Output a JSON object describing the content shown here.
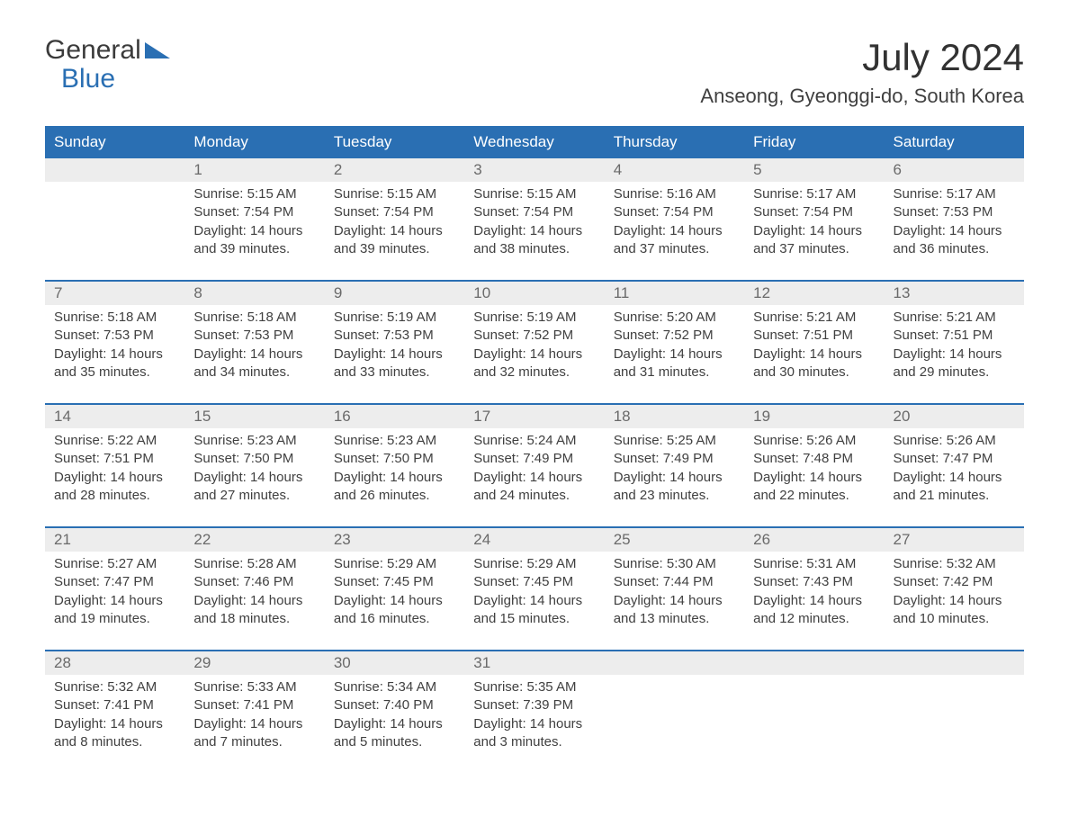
{
  "logo": {
    "line1": "General",
    "line2": "Blue"
  },
  "title": {
    "month": "July 2024",
    "location": "Anseong, Gyeonggi-do, South Korea"
  },
  "colors": {
    "header_bg": "#2a6fb3",
    "header_text": "#ffffff",
    "daynum_bg": "#ededed",
    "daynum_text": "#6a6a6a",
    "body_text": "#404040",
    "background": "#ffffff",
    "week_border": "#2a6fb3"
  },
  "typography": {
    "month_fontsize": 42,
    "location_fontsize": 22,
    "dayheader_fontsize": 17,
    "daynum_fontsize": 17,
    "content_fontsize": 15
  },
  "day_headers": [
    "Sunday",
    "Monday",
    "Tuesday",
    "Wednesday",
    "Thursday",
    "Friday",
    "Saturday"
  ],
  "weeks": [
    [
      {
        "num": "",
        "sunrise": "",
        "sunset": "",
        "daylight1": "",
        "daylight2": ""
      },
      {
        "num": "1",
        "sunrise": "Sunrise: 5:15 AM",
        "sunset": "Sunset: 7:54 PM",
        "daylight1": "Daylight: 14 hours",
        "daylight2": "and 39 minutes."
      },
      {
        "num": "2",
        "sunrise": "Sunrise: 5:15 AM",
        "sunset": "Sunset: 7:54 PM",
        "daylight1": "Daylight: 14 hours",
        "daylight2": "and 39 minutes."
      },
      {
        "num": "3",
        "sunrise": "Sunrise: 5:15 AM",
        "sunset": "Sunset: 7:54 PM",
        "daylight1": "Daylight: 14 hours",
        "daylight2": "and 38 minutes."
      },
      {
        "num": "4",
        "sunrise": "Sunrise: 5:16 AM",
        "sunset": "Sunset: 7:54 PM",
        "daylight1": "Daylight: 14 hours",
        "daylight2": "and 37 minutes."
      },
      {
        "num": "5",
        "sunrise": "Sunrise: 5:17 AM",
        "sunset": "Sunset: 7:54 PM",
        "daylight1": "Daylight: 14 hours",
        "daylight2": "and 37 minutes."
      },
      {
        "num": "6",
        "sunrise": "Sunrise: 5:17 AM",
        "sunset": "Sunset: 7:53 PM",
        "daylight1": "Daylight: 14 hours",
        "daylight2": "and 36 minutes."
      }
    ],
    [
      {
        "num": "7",
        "sunrise": "Sunrise: 5:18 AM",
        "sunset": "Sunset: 7:53 PM",
        "daylight1": "Daylight: 14 hours",
        "daylight2": "and 35 minutes."
      },
      {
        "num": "8",
        "sunrise": "Sunrise: 5:18 AM",
        "sunset": "Sunset: 7:53 PM",
        "daylight1": "Daylight: 14 hours",
        "daylight2": "and 34 minutes."
      },
      {
        "num": "9",
        "sunrise": "Sunrise: 5:19 AM",
        "sunset": "Sunset: 7:53 PM",
        "daylight1": "Daylight: 14 hours",
        "daylight2": "and 33 minutes."
      },
      {
        "num": "10",
        "sunrise": "Sunrise: 5:19 AM",
        "sunset": "Sunset: 7:52 PM",
        "daylight1": "Daylight: 14 hours",
        "daylight2": "and 32 minutes."
      },
      {
        "num": "11",
        "sunrise": "Sunrise: 5:20 AM",
        "sunset": "Sunset: 7:52 PM",
        "daylight1": "Daylight: 14 hours",
        "daylight2": "and 31 minutes."
      },
      {
        "num": "12",
        "sunrise": "Sunrise: 5:21 AM",
        "sunset": "Sunset: 7:51 PM",
        "daylight1": "Daylight: 14 hours",
        "daylight2": "and 30 minutes."
      },
      {
        "num": "13",
        "sunrise": "Sunrise: 5:21 AM",
        "sunset": "Sunset: 7:51 PM",
        "daylight1": "Daylight: 14 hours",
        "daylight2": "and 29 minutes."
      }
    ],
    [
      {
        "num": "14",
        "sunrise": "Sunrise: 5:22 AM",
        "sunset": "Sunset: 7:51 PM",
        "daylight1": "Daylight: 14 hours",
        "daylight2": "and 28 minutes."
      },
      {
        "num": "15",
        "sunrise": "Sunrise: 5:23 AM",
        "sunset": "Sunset: 7:50 PM",
        "daylight1": "Daylight: 14 hours",
        "daylight2": "and 27 minutes."
      },
      {
        "num": "16",
        "sunrise": "Sunrise: 5:23 AM",
        "sunset": "Sunset: 7:50 PM",
        "daylight1": "Daylight: 14 hours",
        "daylight2": "and 26 minutes."
      },
      {
        "num": "17",
        "sunrise": "Sunrise: 5:24 AM",
        "sunset": "Sunset: 7:49 PM",
        "daylight1": "Daylight: 14 hours",
        "daylight2": "and 24 minutes."
      },
      {
        "num": "18",
        "sunrise": "Sunrise: 5:25 AM",
        "sunset": "Sunset: 7:49 PM",
        "daylight1": "Daylight: 14 hours",
        "daylight2": "and 23 minutes."
      },
      {
        "num": "19",
        "sunrise": "Sunrise: 5:26 AM",
        "sunset": "Sunset: 7:48 PM",
        "daylight1": "Daylight: 14 hours",
        "daylight2": "and 22 minutes."
      },
      {
        "num": "20",
        "sunrise": "Sunrise: 5:26 AM",
        "sunset": "Sunset: 7:47 PM",
        "daylight1": "Daylight: 14 hours",
        "daylight2": "and 21 minutes."
      }
    ],
    [
      {
        "num": "21",
        "sunrise": "Sunrise: 5:27 AM",
        "sunset": "Sunset: 7:47 PM",
        "daylight1": "Daylight: 14 hours",
        "daylight2": "and 19 minutes."
      },
      {
        "num": "22",
        "sunrise": "Sunrise: 5:28 AM",
        "sunset": "Sunset: 7:46 PM",
        "daylight1": "Daylight: 14 hours",
        "daylight2": "and 18 minutes."
      },
      {
        "num": "23",
        "sunrise": "Sunrise: 5:29 AM",
        "sunset": "Sunset: 7:45 PM",
        "daylight1": "Daylight: 14 hours",
        "daylight2": "and 16 minutes."
      },
      {
        "num": "24",
        "sunrise": "Sunrise: 5:29 AM",
        "sunset": "Sunset: 7:45 PM",
        "daylight1": "Daylight: 14 hours",
        "daylight2": "and 15 minutes."
      },
      {
        "num": "25",
        "sunrise": "Sunrise: 5:30 AM",
        "sunset": "Sunset: 7:44 PM",
        "daylight1": "Daylight: 14 hours",
        "daylight2": "and 13 minutes."
      },
      {
        "num": "26",
        "sunrise": "Sunrise: 5:31 AM",
        "sunset": "Sunset: 7:43 PM",
        "daylight1": "Daylight: 14 hours",
        "daylight2": "and 12 minutes."
      },
      {
        "num": "27",
        "sunrise": "Sunrise: 5:32 AM",
        "sunset": "Sunset: 7:42 PM",
        "daylight1": "Daylight: 14 hours",
        "daylight2": "and 10 minutes."
      }
    ],
    [
      {
        "num": "28",
        "sunrise": "Sunrise: 5:32 AM",
        "sunset": "Sunset: 7:41 PM",
        "daylight1": "Daylight: 14 hours",
        "daylight2": "and 8 minutes."
      },
      {
        "num": "29",
        "sunrise": "Sunrise: 5:33 AM",
        "sunset": "Sunset: 7:41 PM",
        "daylight1": "Daylight: 14 hours",
        "daylight2": "and 7 minutes."
      },
      {
        "num": "30",
        "sunrise": "Sunrise: 5:34 AM",
        "sunset": "Sunset: 7:40 PM",
        "daylight1": "Daylight: 14 hours",
        "daylight2": "and 5 minutes."
      },
      {
        "num": "31",
        "sunrise": "Sunrise: 5:35 AM",
        "sunset": "Sunset: 7:39 PM",
        "daylight1": "Daylight: 14 hours",
        "daylight2": "and 3 minutes."
      },
      {
        "num": "",
        "sunrise": "",
        "sunset": "",
        "daylight1": "",
        "daylight2": ""
      },
      {
        "num": "",
        "sunrise": "",
        "sunset": "",
        "daylight1": "",
        "daylight2": ""
      },
      {
        "num": "",
        "sunrise": "",
        "sunset": "",
        "daylight1": "",
        "daylight2": ""
      }
    ]
  ]
}
